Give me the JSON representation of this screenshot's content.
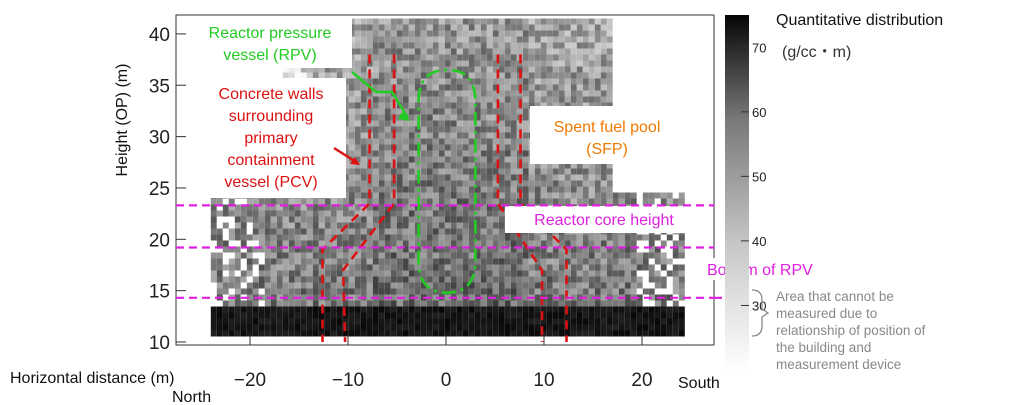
{
  "chart_data": {
    "type": "heatmap",
    "xlabel": "Horizontal distance (m)",
    "ylabel": "Height (OP) (m)",
    "x_end_labels": {
      "left": "North",
      "right": "South"
    },
    "xlim": [
      -25,
      25
    ],
    "ylim": [
      9,
      42
    ],
    "x_ticks": [
      -20,
      -10,
      0,
      10,
      20
    ],
    "y_ticks": [
      10,
      15,
      20,
      25,
      30,
      35,
      40
    ],
    "colorbar": {
      "title": "Quantitative distribution",
      "unit": "(g/cc・m)",
      "ticks": [
        30,
        40,
        50,
        60,
        70
      ],
      "range": [
        20,
        75
      ],
      "colormap": "grayscale, black = high"
    },
    "reference_lines": [
      {
        "label": "Reactor core height",
        "y": 23.3,
        "color": "#e020e0"
      },
      {
        "label": "",
        "y": 19.2,
        "color": "#e020e0"
      },
      {
        "label": "Bottom of RPV",
        "y": 14.3,
        "color": "#e020e0"
      }
    ],
    "annotations": {
      "rpv": "Reactor pressure vessel (RPV)",
      "pcv": "Concrete walls surrounding primary containment vessel (PCV)",
      "sfp": "Spent fuel pool (SFP)",
      "unmeasurable": "Area that cannot be measured due to relationship of position of the building and measurement device"
    },
    "colors": {
      "rpv_outline": "#22cc22",
      "pcv_walls": "#dd1111",
      "sfp_label": "#f07a00",
      "reference_lines": "#e020e0",
      "note_text": "#888888"
    }
  }
}
